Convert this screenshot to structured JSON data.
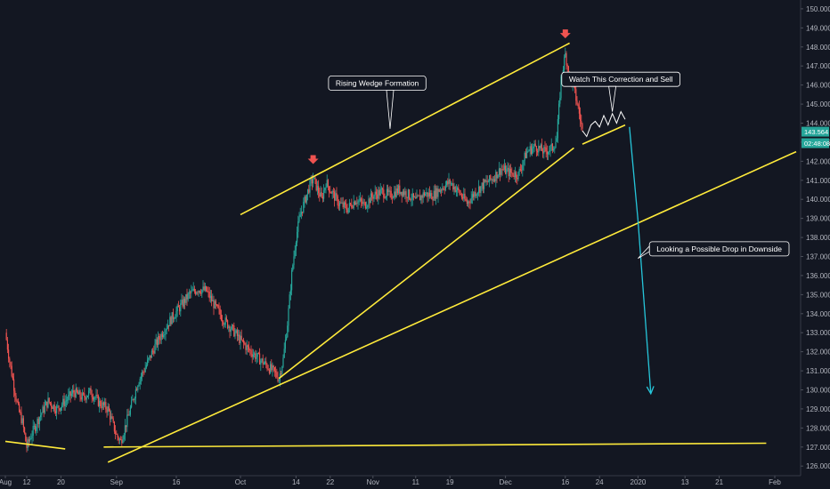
{
  "chart_data": {
    "type": "candlestick",
    "title": "",
    "xlabel": "",
    "ylabel": "",
    "ylim": [
      125.8,
      150.3
    ],
    "grid": false,
    "yticks": [
      "126.000",
      "127.000",
      "128.000",
      "129.000",
      "130.000",
      "131.000",
      "132.000",
      "133.000",
      "134.000",
      "135.000",
      "136.000",
      "137.000",
      "138.000",
      "139.000",
      "140.000",
      "141.000",
      "142.000",
      "143.000",
      "144.000",
      "145.000",
      "146.000",
      "147.000",
      "148.000",
      "149.000",
      "150.000"
    ],
    "xticks": [
      {
        "label": "Aug",
        "date": "2019-08-07"
      },
      {
        "label": "12",
        "date": "2019-08-12"
      },
      {
        "label": "20",
        "date": "2019-08-20"
      },
      {
        "label": "Sep",
        "date": "2019-09-02"
      },
      {
        "label": "16",
        "date": "2019-09-16"
      },
      {
        "label": "Oct",
        "date": "2019-10-01"
      },
      {
        "label": "14",
        "date": "2019-10-14"
      },
      {
        "label": "22",
        "date": "2019-10-22"
      },
      {
        "label": "Nov",
        "date": "2019-11-01"
      },
      {
        "label": "11",
        "date": "2019-11-11"
      },
      {
        "label": "19",
        "date": "2019-11-19"
      },
      {
        "label": "Dec",
        "date": "2019-12-02"
      },
      {
        "label": "16",
        "date": "2019-12-16"
      },
      {
        "label": "24",
        "date": "2019-12-24"
      },
      {
        "label": "2020",
        "date": "2020-01-02"
      },
      {
        "label": "13",
        "date": "2020-01-13"
      },
      {
        "label": "21",
        "date": "2020-01-21"
      },
      {
        "label": "Feb",
        "date": "2020-02-03"
      }
    ],
    "price_path": [
      [
        "2019-08-07",
        133.0
      ],
      [
        "2019-08-08",
        131.5
      ],
      [
        "2019-08-09",
        130.2
      ],
      [
        "2019-08-10",
        129.0
      ],
      [
        "2019-08-11",
        128.3
      ],
      [
        "2019-08-12",
        127.0
      ],
      [
        "2019-08-13",
        127.6
      ],
      [
        "2019-08-15",
        128.6
      ],
      [
        "2019-08-17",
        129.4
      ],
      [
        "2019-08-19",
        129.0
      ],
      [
        "2019-08-21",
        129.4
      ],
      [
        "2019-08-23",
        129.9
      ],
      [
        "2019-08-25",
        129.6
      ],
      [
        "2019-08-27",
        129.9
      ],
      [
        "2019-08-29",
        129.3
      ],
      [
        "2019-08-31",
        129.0
      ],
      [
        "2019-09-02",
        127.6
      ],
      [
        "2019-09-03",
        127.3
      ],
      [
        "2019-09-05",
        128.8
      ],
      [
        "2019-09-07",
        130.4
      ],
      [
        "2019-09-09",
        131.3
      ],
      [
        "2019-09-11",
        132.3
      ],
      [
        "2019-09-13",
        133.1
      ],
      [
        "2019-09-15",
        133.8
      ],
      [
        "2019-09-17",
        134.4
      ],
      [
        "2019-09-19",
        135.0
      ],
      [
        "2019-09-21",
        135.3
      ],
      [
        "2019-09-23",
        135.2
      ],
      [
        "2019-09-25",
        134.4
      ],
      [
        "2019-09-27",
        133.7
      ],
      [
        "2019-09-29",
        133.2
      ],
      [
        "2019-10-01",
        132.6
      ],
      [
        "2019-10-03",
        132.1
      ],
      [
        "2019-10-05",
        131.7
      ],
      [
        "2019-10-07",
        131.3
      ],
      [
        "2019-10-09",
        130.9
      ],
      [
        "2019-10-10",
        130.6
      ],
      [
        "2019-10-11",
        131.6
      ],
      [
        "2019-10-12",
        133.5
      ],
      [
        "2019-10-13",
        136.1
      ],
      [
        "2019-10-14",
        138.0
      ],
      [
        "2019-10-15",
        139.2
      ],
      [
        "2019-10-17",
        140.6
      ],
      [
        "2019-10-18",
        141.1
      ],
      [
        "2019-10-20",
        140.0
      ],
      [
        "2019-10-21",
        140.9
      ],
      [
        "2019-10-22",
        140.5
      ],
      [
        "2019-10-24",
        139.8
      ],
      [
        "2019-10-26",
        139.5
      ],
      [
        "2019-10-28",
        140.0
      ],
      [
        "2019-10-30",
        139.7
      ],
      [
        "2019-11-01",
        140.2
      ],
      [
        "2019-11-03",
        140.4
      ],
      [
        "2019-11-05",
        140.2
      ],
      [
        "2019-11-07",
        140.5
      ],
      [
        "2019-11-09",
        140.3
      ],
      [
        "2019-11-11",
        139.9
      ],
      [
        "2019-11-13",
        140.3
      ],
      [
        "2019-11-15",
        140.2
      ],
      [
        "2019-11-17",
        140.6
      ],
      [
        "2019-11-19",
        140.9
      ],
      [
        "2019-11-21",
        140.4
      ],
      [
        "2019-11-23",
        139.8
      ],
      [
        "2019-11-25",
        140.4
      ],
      [
        "2019-11-27",
        140.8
      ],
      [
        "2019-11-29",
        141.1
      ],
      [
        "2019-12-01",
        141.6
      ],
      [
        "2019-12-03",
        141.4
      ],
      [
        "2019-12-05",
        141.3
      ],
      [
        "2019-12-07",
        142.5
      ],
      [
        "2019-12-09",
        142.8
      ],
      [
        "2019-12-11",
        142.5
      ],
      [
        "2019-12-13",
        142.7
      ],
      [
        "2019-12-14",
        143.2
      ],
      [
        "2019-12-15",
        146.3
      ],
      [
        "2019-12-16",
        147.6
      ],
      [
        "2019-12-17",
        146.5
      ],
      [
        "2019-12-18",
        145.8
      ],
      [
        "2019-12-19",
        144.8
      ],
      [
        "2019-12-20",
        143.6
      ]
    ],
    "projected_path": [
      [
        "2019-12-21",
        143.3
      ],
      [
        "2019-12-22",
        143.9
      ],
      [
        "2019-12-23",
        144.1
      ],
      [
        "2019-12-24",
        143.8
      ],
      [
        "2019-12-25",
        144.4
      ],
      [
        "2019-12-26",
        143.9
      ],
      [
        "2019-12-27",
        144.5
      ],
      [
        "2019-12-28",
        144.0
      ],
      [
        "2019-12-29",
        144.6
      ],
      [
        "2019-12-30",
        144.2
      ]
    ],
    "trendlines": [
      {
        "from": [
          "2019-10-01",
          139.2
        ],
        "to": [
          "2019-12-17",
          148.2
        ]
      },
      {
        "from": [
          "2019-10-10",
          130.6
        ],
        "to": [
          "2019-12-18",
          142.7
        ]
      },
      {
        "from": [
          "2019-08-31",
          126.2
        ],
        "to": [
          "2020-02-08",
          142.5
        ]
      },
      {
        "from": [
          "2019-08-07",
          127.3
        ],
        "to": [
          "2019-08-21",
          126.9
        ]
      },
      {
        "from": [
          "2019-08-30",
          127.0
        ],
        "to": [
          "2020-02-01",
          127.2
        ]
      },
      {
        "from": [
          "2019-12-20",
          142.9
        ],
        "to": [
          "2019-12-30",
          143.9
        ]
      }
    ],
    "down_arrows": [
      {
        "date": "2019-10-18",
        "price": 141.9
      },
      {
        "date": "2019-12-16",
        "price": 148.5
      }
    ],
    "projection_arrows": [
      {
        "from": [
          "2019-12-31",
          143.8
        ],
        "to": [
          "2020-01-02",
          138.9
        ]
      },
      {
        "from": [
          "2020-01-02",
          138.9
        ],
        "to": [
          "2020-01-05",
          129.8
        ]
      }
    ],
    "annotations": [
      {
        "text": "Rising Wedge Formation",
        "date": "2019-11-02",
        "price": 146.1,
        "pointer": [
          "2019-11-05",
          143.7
        ]
      },
      {
        "text": "Watch This Correction and Sell",
        "date": "2019-12-29",
        "price": 146.3,
        "pointer": [
          "2019-12-27",
          144.6
        ]
      },
      {
        "text": "Looking a Possible Drop in Downside",
        "date": "2020-01-21",
        "price": 137.4,
        "pointer": [
          "2020-01-02",
          136.9
        ]
      }
    ],
    "price_tags": [
      {
        "text": "143.564",
        "price": 143.55,
        "color": "#26a69a"
      },
      {
        "text": "02:48:08",
        "price": 142.95,
        "color": "#26a69a"
      }
    ],
    "colors": {
      "background": "#131722",
      "up": "#26a69a",
      "down": "#ef5350",
      "trend": "#ffeb3b",
      "projection": "#26c6da",
      "annotation_border": "#ffffff"
    }
  }
}
